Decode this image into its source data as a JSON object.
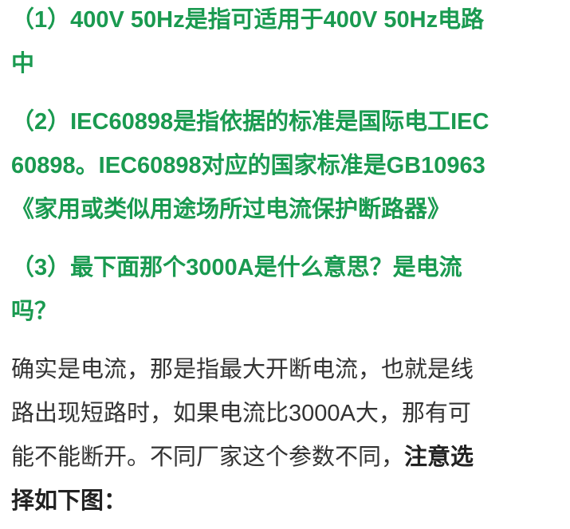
{
  "colors": {
    "heading_green": "#1a9a50",
    "body_text": "#333333"
  },
  "paragraphs": [
    {
      "lines": [
        "（1）400V 50Hz是指可适用于400V 50Hz电路",
        "中"
      ]
    },
    {
      "lines": [
        "（2）IEC60898是指依据的标准是国际电工IEC",
        "60898。IEC60898对应的国家标准是GB10963",
        "《家用或类似用途场所过电流保护断路器》"
      ]
    },
    {
      "lines": [
        "（3）最下面那个3000A是什么意思？是电流",
        "吗？"
      ]
    },
    {
      "lines": [
        "确实是电流，那是指最大开断电流，也就是线",
        "路出现短路时，如果电流比3000A大，那有可",
        "能不能断开。不同厂家这个参数不同，"
      ],
      "bold_tail": "注意选",
      "bold_last_line": "择如下图："
    }
  ]
}
